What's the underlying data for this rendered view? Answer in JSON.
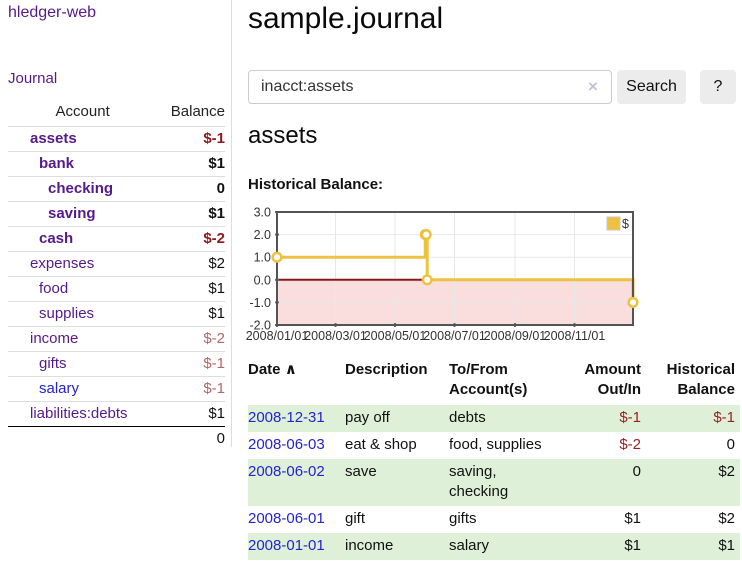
{
  "app": {
    "title": "hledger-web",
    "nav_journal": "Journal"
  },
  "colors": {
    "link_purple": "#551a8b",
    "link_blue": "#2323cf",
    "negative_strong": "#8b1a1a",
    "negative_soft": "#b06868",
    "row_stripe_green": "#dff0d8",
    "button_gray": "#ececec",
    "chart_line": "#edc240",
    "chart_negative_region": "#fadddd",
    "chart_zero_line": "#8c1616"
  },
  "sidebar": {
    "header": {
      "account": "Account",
      "balance": "Balance"
    },
    "accounts": [
      {
        "name": "assets",
        "balance": "$-1",
        "depth": 1,
        "bold": true,
        "negative": true
      },
      {
        "name": "bank",
        "balance": "$1",
        "depth": 2,
        "bold": true,
        "negative": false
      },
      {
        "name": "checking",
        "balance": "0",
        "depth": 3,
        "bold": true,
        "negative": false
      },
      {
        "name": "saving",
        "balance": "$1",
        "depth": 3,
        "bold": true,
        "negative": false
      },
      {
        "name": "cash",
        "balance": "$-2",
        "depth": 2,
        "bold": true,
        "negative": true
      },
      {
        "name": "expenses",
        "balance": "$2",
        "depth": 1,
        "bold": false,
        "negative": false
      },
      {
        "name": "food",
        "balance": "$1",
        "depth": 2,
        "bold": false,
        "negative": false
      },
      {
        "name": "supplies",
        "balance": "$1",
        "depth": 2,
        "bold": false,
        "negative": false
      },
      {
        "name": "income",
        "balance": "$-2",
        "depth": 1,
        "bold": false,
        "negative": true
      },
      {
        "name": "gifts",
        "balance": "$-1",
        "depth": 2,
        "bold": false,
        "negative": true
      },
      {
        "name": "salary",
        "balance": "$-1",
        "depth": 2,
        "bold": false,
        "negative": true,
        "blue": true
      },
      {
        "name": "liabilities:debts",
        "balance": "$1",
        "depth": 1,
        "bold": false,
        "negative": false
      }
    ],
    "total": "0"
  },
  "main": {
    "title": "sample.journal",
    "search": {
      "query": "inacct:assets",
      "clear_icon": "×",
      "button": "Search",
      "help": "?"
    },
    "account_heading": "assets",
    "chart_label": "Historical Balance:"
  },
  "chart_data": {
    "type": "line",
    "title": "Historical Balance",
    "series": [
      {
        "name": "$",
        "color": "#edc240",
        "steps": true,
        "points": [
          [
            "2008-01-01",
            1
          ],
          [
            "2008-06-01",
            2
          ],
          [
            "2008-06-02",
            2
          ],
          [
            "2008-06-03",
            0
          ],
          [
            "2008-12-31",
            -1
          ]
        ]
      }
    ],
    "x_range": [
      "2008-01-01",
      "2008-12-31"
    ],
    "x_ticks": [
      {
        "date": "2008-01-01",
        "label": "2008/01/01"
      },
      {
        "date": "2008-03-01",
        "label": "2008/03/01"
      },
      {
        "date": "2008-05-01",
        "label": "2008/05/01"
      },
      {
        "date": "2008-07-01",
        "label": "2008/07/01"
      },
      {
        "date": "2008-09-01",
        "label": "2008/09/01"
      },
      {
        "date": "2008-11-01",
        "label": "2008/11/01"
      }
    ],
    "ylim": [
      -2,
      3
    ],
    "y_ticks": [
      {
        "v": 3,
        "label": "3.0"
      },
      {
        "v": 2,
        "label": "2.0"
      },
      {
        "v": 1,
        "label": "1.0"
      },
      {
        "v": 0,
        "label": "0.0"
      },
      {
        "v": -1,
        "label": "-1.0"
      },
      {
        "v": -2,
        "label": "-2.0"
      }
    ],
    "grid": true,
    "legend": {
      "label": "$",
      "position": "top-right"
    },
    "negative_region": true
  },
  "register": {
    "headers": {
      "date": "Date",
      "sort_icon": "∧",
      "description": "Description",
      "accounts": "To/From\nAccount(s)",
      "amount": "Amount\nOut/In",
      "balance": "Historical\nBalance"
    },
    "rows": [
      {
        "date": "2008-12-31",
        "description": "pay off",
        "accounts": "debts",
        "amount": "$-1",
        "balance": "$-1"
      },
      {
        "date": "2008-06-03",
        "description": "eat & shop",
        "accounts": "food, supplies",
        "amount": "$-2",
        "balance": "0"
      },
      {
        "date": "2008-06-02",
        "description": "save",
        "accounts": "saving,\nchecking",
        "amount": "0",
        "balance": "$2"
      },
      {
        "date": "2008-06-01",
        "description": "gift",
        "accounts": "gifts",
        "amount": "$1",
        "balance": "$2"
      },
      {
        "date": "2008-01-01",
        "description": "income",
        "accounts": "salary",
        "amount": "$1",
        "balance": "$1"
      }
    ]
  }
}
